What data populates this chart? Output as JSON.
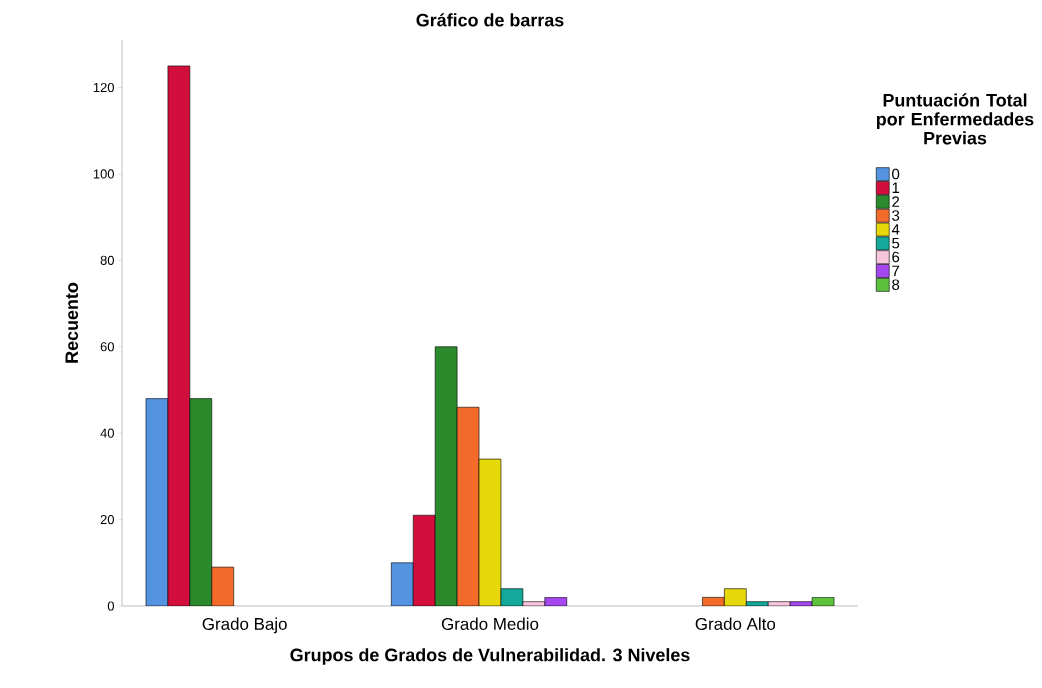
{
  "chart_data": {
    "type": "bar",
    "title": "Gráfico de barras",
    "xlabel": "Grupos de Grados de Vulnerabilidad. 3 Niveles",
    "ylabel": "Recuento",
    "legend_title": "Puntuación Total por Enfermedades Previas",
    "categories": [
      "Grado Bajo",
      "Grado Medio",
      "Grado Alto"
    ],
    "series": [
      {
        "name": "0",
        "color": "#5393e0",
        "values": [
          48,
          10,
          null
        ]
      },
      {
        "name": "1",
        "color": "#d20f3c",
        "values": [
          125,
          21,
          null
        ]
      },
      {
        "name": "2",
        "color": "#2b8a2b",
        "values": [
          48,
          60,
          null
        ]
      },
      {
        "name": "3",
        "color": "#f26b2a",
        "values": [
          9,
          46,
          2
        ]
      },
      {
        "name": "4",
        "color": "#e6d80a",
        "values": [
          null,
          34,
          4
        ]
      },
      {
        "name": "5",
        "color": "#14a89a",
        "values": [
          null,
          4,
          1
        ]
      },
      {
        "name": "6",
        "color": "#f7c6dc",
        "values": [
          null,
          1,
          1
        ]
      },
      {
        "name": "7",
        "color": "#a447ee",
        "values": [
          null,
          2,
          1
        ]
      },
      {
        "name": "8",
        "color": "#5cc23e",
        "values": [
          null,
          null,
          2
        ]
      }
    ],
    "ylim": [
      0,
      131
    ],
    "yticks": [
      0,
      20,
      40,
      60,
      80,
      100,
      120
    ],
    "grid": false,
    "legend": "top right"
  }
}
